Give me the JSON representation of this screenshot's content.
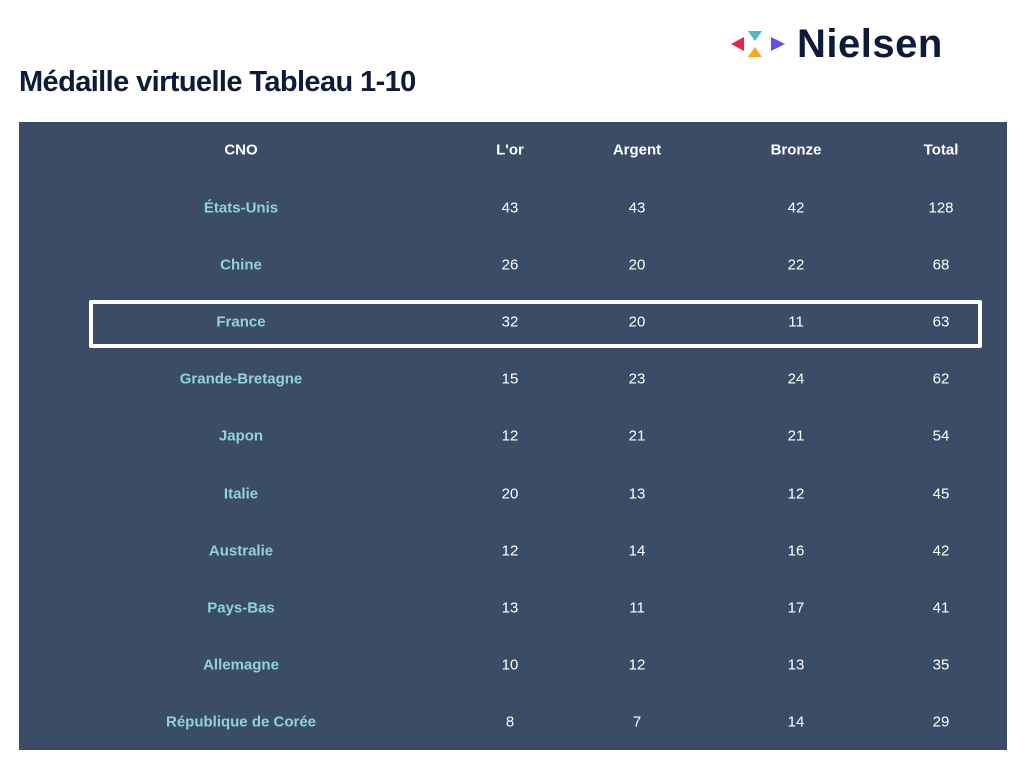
{
  "brand": {
    "name": "Nielsen",
    "logo_colors": [
      "#e8254a",
      "#4bb9c6",
      "#f5a623",
      "#6c4ce8"
    ]
  },
  "title": "Médaille virtuelle Tableau 1-10",
  "colors": {
    "panel_bg": "#3b4c66",
    "country_text": "#8fd3d9",
    "value_text": "#ffffff",
    "title_text": "#0d1b38"
  },
  "chart_data": {
    "type": "table",
    "columns": [
      "CNO",
      "L'or",
      "Argent",
      "Bronze",
      "Total"
    ],
    "highlighted_row": "France",
    "rows": [
      {
        "cno": "États-Unis",
        "or": "43",
        "argent": "43",
        "bronze": "42",
        "total": "128"
      },
      {
        "cno": "Chine",
        "or": "26",
        "argent": "20",
        "bronze": "22",
        "total": "68"
      },
      {
        "cno": "France",
        "or": "32",
        "argent": "20",
        "bronze": "11",
        "total": "63"
      },
      {
        "cno": "Grande-Bretagne",
        "or": "15",
        "argent": "23",
        "bronze": "24",
        "total": "62"
      },
      {
        "cno": "Japon",
        "or": "12",
        "argent": "21",
        "bronze": "21",
        "total": "54"
      },
      {
        "cno": "Italie",
        "or": "20",
        "argent": "13",
        "bronze": "12",
        "total": "45"
      },
      {
        "cno": "Australie",
        "or": "12",
        "argent": "14",
        "bronze": "16",
        "total": "42"
      },
      {
        "cno": "Pays-Bas",
        "or": "13",
        "argent": "11",
        "bronze": "17",
        "total": "41"
      },
      {
        "cno": "Allemagne",
        "or": "10",
        "argent": "12",
        "bronze": "13",
        "total": "35"
      },
      {
        "cno": "République de Corée",
        "or": "8",
        "argent": "7",
        "bronze": "14",
        "total": "29"
      }
    ]
  }
}
